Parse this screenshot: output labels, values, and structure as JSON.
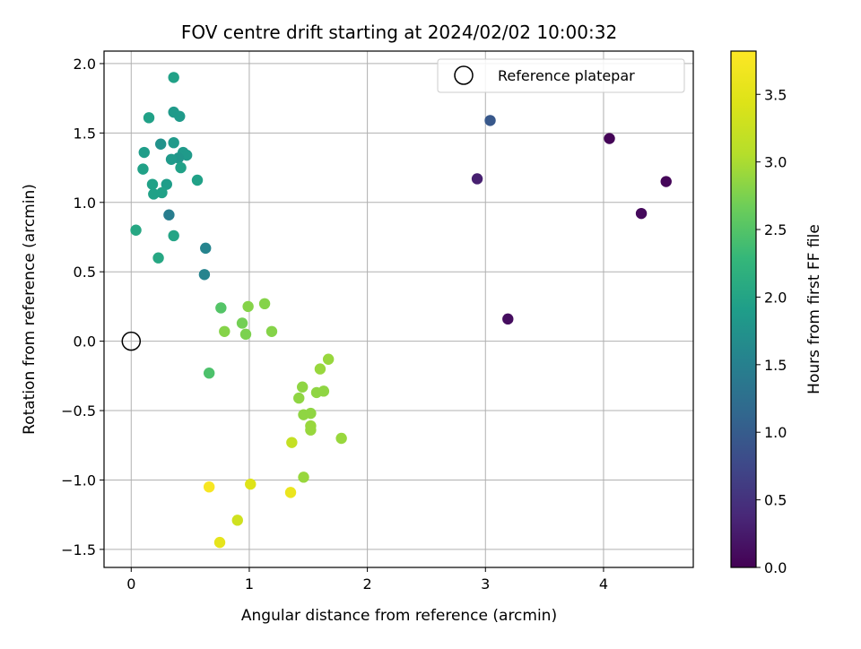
{
  "chart_data": {
    "type": "scatter",
    "title": "FOV centre drift starting at 2024/02/02 10:00:32",
    "xlabel": "Angular distance from reference (arcmin)",
    "ylabel": "Rotation from reference (arcmin)",
    "xlim": [
      -0.23,
      4.76
    ],
    "ylim": [
      -1.63,
      2.09
    ],
    "xticks": [
      0,
      1,
      2,
      3,
      4
    ],
    "yticks": [
      -1.5,
      -1.0,
      -0.5,
      0.0,
      0.5,
      1.0,
      1.5,
      2.0
    ],
    "xtick_labels": [
      "0",
      "1",
      "2",
      "3",
      "4"
    ],
    "ytick_labels": [
      "−1.5",
      "−1.0",
      "−0.5",
      "0.0",
      "0.5",
      "1.0",
      "1.5",
      "2.0"
    ],
    "grid": true,
    "legend": {
      "location": "upper right",
      "entries": [
        "Reference platepar"
      ]
    },
    "reference_point": {
      "x": 0,
      "y": 0
    },
    "colorbar": {
      "label": "Hours from first FF file",
      "colormap": "viridis",
      "range": [
        0.0,
        3.82
      ],
      "ticks": [
        0.0,
        0.5,
        1.0,
        1.5,
        2.0,
        2.5,
        3.0,
        3.5
      ],
      "tick_labels": [
        "0.0",
        "0.5",
        "1.0",
        "1.5",
        "2.0",
        "2.5",
        "3.0",
        "3.5"
      ]
    },
    "points": [
      {
        "x": 3.04,
        "y": 1.59,
        "c": 0.95
      },
      {
        "x": 2.93,
        "y": 1.17,
        "c": 0.3
      },
      {
        "x": 3.19,
        "y": 0.16,
        "c": 0.12
      },
      {
        "x": 4.05,
        "y": 1.46,
        "c": 0.03
      },
      {
        "x": 4.32,
        "y": 0.92,
        "c": 0.08
      },
      {
        "x": 4.53,
        "y": 1.15,
        "c": 0.05
      },
      {
        "x": 0.36,
        "y": 1.9,
        "c": 1.95
      },
      {
        "x": 0.15,
        "y": 1.61,
        "c": 1.95
      },
      {
        "x": 0.36,
        "y": 1.65,
        "c": 1.85
      },
      {
        "x": 0.41,
        "y": 1.62,
        "c": 1.85
      },
      {
        "x": 0.25,
        "y": 1.42,
        "c": 1.75
      },
      {
        "x": 0.36,
        "y": 1.43,
        "c": 1.85
      },
      {
        "x": 0.11,
        "y": 1.36,
        "c": 1.9
      },
      {
        "x": 0.44,
        "y": 1.36,
        "c": 1.85
      },
      {
        "x": 0.47,
        "y": 1.34,
        "c": 1.85
      },
      {
        "x": 0.4,
        "y": 1.32,
        "c": 1.8
      },
      {
        "x": 0.34,
        "y": 1.31,
        "c": 1.85
      },
      {
        "x": 0.1,
        "y": 1.24,
        "c": 1.95
      },
      {
        "x": 0.42,
        "y": 1.25,
        "c": 1.95
      },
      {
        "x": 0.56,
        "y": 1.16,
        "c": 1.95
      },
      {
        "x": 0.18,
        "y": 1.13,
        "c": 1.95
      },
      {
        "x": 0.3,
        "y": 1.13,
        "c": 1.9
      },
      {
        "x": 0.19,
        "y": 1.06,
        "c": 1.95
      },
      {
        "x": 0.26,
        "y": 1.07,
        "c": 1.95
      },
      {
        "x": 0.32,
        "y": 0.91,
        "c": 1.45
      },
      {
        "x": 0.04,
        "y": 0.8,
        "c": 2.05
      },
      {
        "x": 0.36,
        "y": 0.76,
        "c": 2.0
      },
      {
        "x": 0.63,
        "y": 0.67,
        "c": 1.55
      },
      {
        "x": 0.23,
        "y": 0.6,
        "c": 2.05
      },
      {
        "x": 0.62,
        "y": 0.48,
        "c": 1.55
      },
      {
        "x": 0.76,
        "y": 0.24,
        "c": 2.5
      },
      {
        "x": 0.99,
        "y": 0.25,
        "c": 2.8
      },
      {
        "x": 1.13,
        "y": 0.27,
        "c": 2.8
      },
      {
        "x": 0.94,
        "y": 0.13,
        "c": 2.7
      },
      {
        "x": 0.79,
        "y": 0.07,
        "c": 2.8
      },
      {
        "x": 0.97,
        "y": 0.05,
        "c": 2.75
      },
      {
        "x": 1.19,
        "y": 0.07,
        "c": 2.8
      },
      {
        "x": 0.66,
        "y": -0.23,
        "c": 2.45
      },
      {
        "x": 1.67,
        "y": -0.13,
        "c": 2.9
      },
      {
        "x": 1.6,
        "y": -0.2,
        "c": 2.9
      },
      {
        "x": 1.45,
        "y": -0.33,
        "c": 2.85
      },
      {
        "x": 1.57,
        "y": -0.37,
        "c": 2.85
      },
      {
        "x": 1.63,
        "y": -0.36,
        "c": 2.85
      },
      {
        "x": 1.42,
        "y": -0.41,
        "c": 2.85
      },
      {
        "x": 1.46,
        "y": -0.53,
        "c": 2.85
      },
      {
        "x": 1.52,
        "y": -0.52,
        "c": 2.85
      },
      {
        "x": 1.52,
        "y": -0.61,
        "c": 2.9
      },
      {
        "x": 1.52,
        "y": -0.64,
        "c": 2.9
      },
      {
        "x": 1.78,
        "y": -0.7,
        "c": 2.9
      },
      {
        "x": 1.36,
        "y": -0.73,
        "c": 3.2
      },
      {
        "x": 1.46,
        "y": -0.98,
        "c": 2.9
      },
      {
        "x": 0.66,
        "y": -1.05,
        "c": 3.75
      },
      {
        "x": 1.01,
        "y": -1.03,
        "c": 3.45
      },
      {
        "x": 1.35,
        "y": -1.09,
        "c": 3.6
      },
      {
        "x": 0.9,
        "y": -1.29,
        "c": 3.3
      },
      {
        "x": 0.75,
        "y": -1.45,
        "c": 3.55
      }
    ]
  }
}
